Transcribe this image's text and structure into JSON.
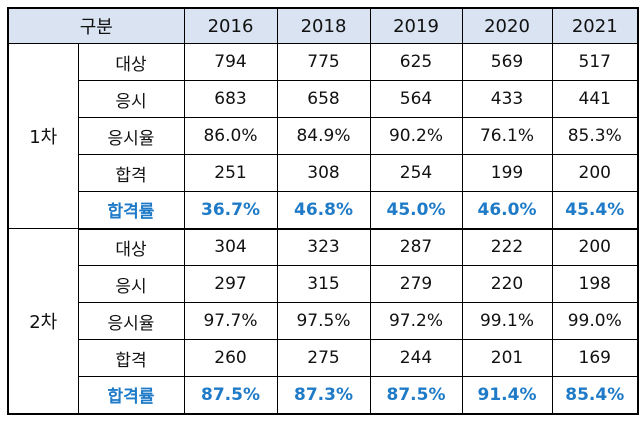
{
  "header": {
    "label": "구분",
    "years": [
      "2016",
      "2018",
      "2019",
      "2020",
      "2021"
    ]
  },
  "groups": [
    {
      "name": "1차",
      "rows": [
        {
          "label": "대상",
          "values": [
            "794",
            "775",
            "625",
            "569",
            "517"
          ]
        },
        {
          "label": "응시",
          "values": [
            "683",
            "658",
            "564",
            "433",
            "441"
          ]
        },
        {
          "label": "응시율",
          "values": [
            "86.0%",
            "84.9%",
            "90.2%",
            "76.1%",
            "85.3%"
          ]
        },
        {
          "label": "합격",
          "values": [
            "251",
            "308",
            "254",
            "199",
            "200"
          ]
        },
        {
          "label": "합격률",
          "values": [
            "36.7%",
            "46.8%",
            "45.0%",
            "46.0%",
            "45.4%"
          ]
        }
      ]
    },
    {
      "name": "2차",
      "rows": [
        {
          "label": "대상",
          "values": [
            "304",
            "323",
            "287",
            "222",
            "200"
          ]
        },
        {
          "label": "응시",
          "values": [
            "297",
            "315",
            "279",
            "220",
            "198"
          ]
        },
        {
          "label": "응시율",
          "values": [
            "97.7%",
            "97.5%",
            "97.2%",
            "99.1%",
            "99.0%"
          ]
        },
        {
          "label": "합격",
          "values": [
            "260",
            "275",
            "244",
            "201",
            "169"
          ]
        },
        {
          "label": "합격률",
          "values": [
            "87.5%",
            "87.3%",
            "87.5%",
            "91.4%",
            "85.4%"
          ]
        }
      ]
    }
  ],
  "colors": {
    "header_bg": "#d9e3f2",
    "highlight_text": "#1f7bc7",
    "border": "#000000"
  }
}
